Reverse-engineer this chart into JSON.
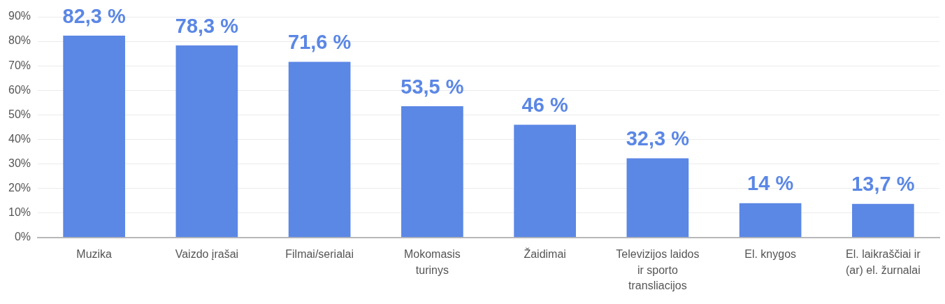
{
  "chart_data": {
    "type": "bar",
    "categories": [
      "Muzika",
      "Vaizdo įrašai",
      "Filmai/serialai",
      "Mokomasis turinys",
      "Žaidimai",
      "Televizijos laidos ir sporto transliacijos",
      "El. knygos",
      "El. laikraščiai ir (ar) el. žurnalai"
    ],
    "values": [
      82.3,
      78.3,
      71.6,
      53.5,
      46,
      32.3,
      14,
      13.7
    ],
    "value_labels": [
      "82,3 %",
      "78,3 %",
      "71,6 %",
      "53,5 %",
      "46 %",
      "32,3 %",
      "14 %",
      "13,7 %"
    ],
    "color": "#5b87e5",
    "ylim": [
      0,
      90
    ],
    "yticks": [
      {
        "value": 0,
        "label": "0%"
      },
      {
        "value": 10,
        "label": "10%"
      },
      {
        "value": 20,
        "label": "20%"
      },
      {
        "value": 30,
        "label": "30%"
      },
      {
        "value": 40,
        "label": "40%"
      },
      {
        "value": 50,
        "label": "50%"
      },
      {
        "value": 60,
        "label": "60%"
      },
      {
        "value": 70,
        "label": "70%"
      },
      {
        "value": 80,
        "label": "80%"
      },
      {
        "value": 90,
        "label": "90%"
      }
    ],
    "grid": "y",
    "legend": false
  }
}
